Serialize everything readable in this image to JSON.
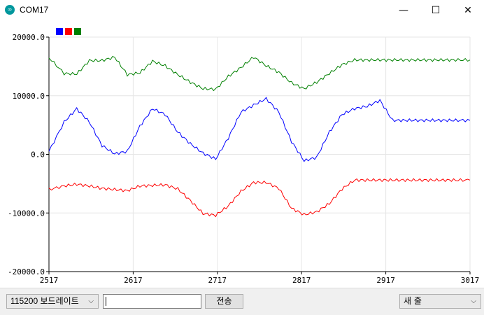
{
  "window": {
    "title": "COM17",
    "app_icon": "arduino-infinity-icon",
    "controls": {
      "minimize": "—",
      "maximize": "☐",
      "close": "✕"
    }
  },
  "chart_data": {
    "type": "line",
    "legend_placement": "top-left",
    "grid": true,
    "ylim": [
      -20000,
      20000
    ],
    "xlim": [
      2517,
      3017
    ],
    "y_ticks": [
      "20000.0",
      "10000.0",
      "0.0",
      "-10000.0",
      "-20000.0"
    ],
    "x_ticks": [
      "2517",
      "2617",
      "2717",
      "2817",
      "2917",
      "3017"
    ],
    "x": [
      2517,
      2535,
      2550,
      2565,
      2580,
      2595,
      2610,
      2625,
      2640,
      2655,
      2670,
      2685,
      2700,
      2715,
      2730,
      2745,
      2760,
      2775,
      2790,
      2805,
      2820,
      2835,
      2850,
      2865,
      2880,
      2895,
      2910,
      2925,
      2940,
      2955,
      2970,
      2985,
      3000,
      3017
    ],
    "series": [
      {
        "color": "#0000ff",
        "values": [
          500,
          5500,
          7800,
          5500,
          1500,
          100,
          500,
          4800,
          7800,
          6800,
          3800,
          1800,
          200,
          -800,
          2800,
          7200,
          8400,
          9500,
          7200,
          2200,
          -1100,
          -500,
          3800,
          6800,
          7800,
          8200,
          9200,
          5800,
          5800,
          5800,
          5800,
          5800,
          5800,
          5800
        ]
      },
      {
        "color": "#ff0000",
        "values": [
          -6000,
          -5400,
          -5100,
          -5400,
          -5800,
          -6000,
          -6200,
          -5400,
          -5300,
          -5200,
          -5900,
          -7900,
          -10100,
          -10400,
          -8800,
          -6300,
          -4800,
          -4800,
          -5800,
          -9200,
          -10300,
          -9800,
          -8400,
          -5900,
          -4400,
          -4400,
          -4400,
          -4400,
          -4400,
          -4400,
          -4400,
          -4400,
          -4400,
          -4400
        ]
      },
      {
        "color": "#008000",
        "values": [
          16500,
          13800,
          13700,
          16000,
          16000,
          16600,
          13600,
          13900,
          15900,
          15100,
          13600,
          12300,
          11200,
          11100,
          13300,
          14800,
          16600,
          15100,
          14000,
          12200,
          11200,
          12300,
          13800,
          15300,
          16100,
          16100,
          16100,
          16100,
          16100,
          16100,
          16100,
          16100,
          16100,
          16100
        ]
      }
    ]
  },
  "controls": {
    "baud_rate": "115200 보드레이트",
    "send_input_value": "",
    "send_label": "전송",
    "line_ending": "새 줄"
  }
}
